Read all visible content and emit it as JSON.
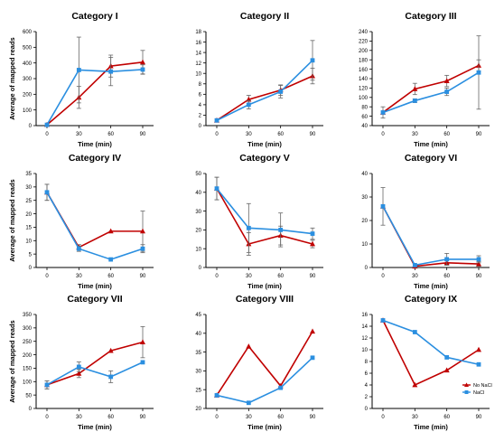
{
  "chart_data": [
    {
      "type": "line",
      "title": "Category I",
      "xlabel": "Time (min)",
      "ylabel": "Average of mapped reads",
      "x": [
        0,
        30,
        60,
        90
      ],
      "ylim": [
        0,
        600
      ],
      "yticks": [
        0,
        100,
        200,
        300,
        400,
        500,
        600
      ],
      "series": [
        {
          "name": "No NaCl",
          "color": "#c00000",
          "marker": "triangle",
          "values": [
            5,
            180,
            380,
            405
          ],
          "err": [
            0,
            70,
            70,
            75
          ]
        },
        {
          "name": "NaCl",
          "color": "#2b8fe0",
          "marker": "square",
          "values": [
            5,
            355,
            345,
            358
          ],
          "err": [
            0,
            210,
            90,
            30
          ]
        }
      ]
    },
    {
      "type": "line",
      "title": "Category II",
      "xlabel": "Time (min)",
      "ylabel": "",
      "x": [
        0,
        30,
        60,
        90
      ],
      "ylim": [
        0,
        18
      ],
      "yticks": [
        0,
        2,
        4,
        6,
        8,
        10,
        12,
        14,
        16,
        18
      ],
      "series": [
        {
          "name": "No NaCl",
          "color": "#c00000",
          "marker": "triangle",
          "values": [
            1,
            5,
            6.8,
            9.5
          ],
          "err": [
            0,
            0.8,
            1.0,
            1.5
          ]
        },
        {
          "name": "NaCl",
          "color": "#2b8fe0",
          "marker": "square",
          "values": [
            1,
            4,
            6.5,
            12.5
          ],
          "err": [
            0,
            0.8,
            1.2,
            3.8
          ]
        }
      ]
    },
    {
      "type": "line",
      "title": "Category III",
      "xlabel": "Time (min)",
      "ylabel": "",
      "x": [
        0,
        30,
        60,
        90
      ],
      "ylim": [
        40,
        240
      ],
      "yticks": [
        40,
        60,
        80,
        100,
        120,
        140,
        160,
        180,
        200,
        220,
        240
      ],
      "series": [
        {
          "name": "No NaCl",
          "color": "#c00000",
          "marker": "triangle",
          "values": [
            68,
            118,
            135,
            168
          ],
          "err": [
            0,
            12,
            12,
            12
          ]
        },
        {
          "name": "NaCl",
          "color": "#2b8fe0",
          "marker": "square",
          "values": [
            68,
            93,
            112,
            153
          ],
          "err": [
            12,
            4,
            8,
            78
          ]
        }
      ]
    },
    {
      "type": "line",
      "title": "Category IV",
      "xlabel": "Time (min)",
      "ylabel": "Average of mapped reads",
      "x": [
        0,
        30,
        60,
        90
      ],
      "ylim": [
        0,
        35
      ],
      "yticks": [
        0,
        5,
        10,
        15,
        20,
        25,
        30,
        35
      ],
      "series": [
        {
          "name": "No NaCl",
          "color": "#c00000",
          "marker": "triangle",
          "values": [
            28,
            7.5,
            13.5,
            13.5
          ],
          "err": [
            3,
            1,
            0,
            7.5
          ]
        },
        {
          "name": "NaCl",
          "color": "#2b8fe0",
          "marker": "square",
          "values": [
            28,
            7,
            3,
            7
          ],
          "err": [
            3,
            1,
            0,
            1.5
          ]
        }
      ]
    },
    {
      "type": "line",
      "title": "Category V",
      "xlabel": "Time (min)",
      "ylabel": "",
      "x": [
        0,
        30,
        60,
        90
      ],
      "ylim": [
        0,
        50
      ],
      "yticks": [
        0,
        10,
        20,
        30,
        40,
        50
      ],
      "series": [
        {
          "name": "No NaCl",
          "color": "#c00000",
          "marker": "triangle",
          "values": [
            42,
            12.5,
            17,
            12.5
          ],
          "err": [
            6,
            6,
            5,
            2
          ]
        },
        {
          "name": "NaCl",
          "color": "#2b8fe0",
          "marker": "square",
          "values": [
            42,
            21,
            20,
            18
          ],
          "err": [
            6,
            13,
            9,
            3
          ]
        }
      ]
    },
    {
      "type": "line",
      "title": "Category VI",
      "xlabel": "Time (min)",
      "ylabel": "",
      "x": [
        0,
        30,
        60,
        90
      ],
      "ylim": [
        0,
        40
      ],
      "yticks": [
        0,
        10,
        20,
        30,
        40
      ],
      "series": [
        {
          "name": "No NaCl",
          "color": "#c00000",
          "marker": "triangle",
          "values": [
            26,
            0.5,
            2,
            1.5
          ],
          "err": [
            0,
            0,
            1,
            1
          ]
        },
        {
          "name": "NaCl",
          "color": "#2b8fe0",
          "marker": "square",
          "values": [
            26,
            1,
            3.5,
            3.5
          ],
          "err": [
            8,
            0.5,
            2.5,
            1.5
          ]
        }
      ]
    },
    {
      "type": "line",
      "title": "Category VII",
      "xlabel": "Time (min)",
      "ylabel": "Average of mapped reads",
      "x": [
        0,
        30,
        60,
        90
      ],
      "ylim": [
        0,
        350
      ],
      "yticks": [
        0,
        50,
        100,
        150,
        200,
        250,
        300,
        350
      ],
      "series": [
        {
          "name": "No NaCl",
          "color": "#c00000",
          "marker": "triangle",
          "values": [
            88,
            130,
            215,
            247
          ],
          "err": [
            15,
            15,
            0,
            58
          ]
        },
        {
          "name": "NaCl",
          "color": "#2b8fe0",
          "marker": "square",
          "values": [
            88,
            155,
            118,
            172
          ],
          "err": [
            15,
            18,
            22,
            0
          ]
        }
      ]
    },
    {
      "type": "line",
      "title": "Category VIII",
      "xlabel": "Time (min)",
      "ylabel": "",
      "x": [
        0,
        30,
        60,
        90
      ],
      "ylim": [
        20,
        45
      ],
      "yticks": [
        20,
        25,
        30,
        35,
        40,
        45
      ],
      "series": [
        {
          "name": "No NaCl",
          "color": "#c00000",
          "marker": "triangle",
          "values": [
            23.5,
            36.5,
            26,
            40.5
          ],
          "err": [
            0,
            0,
            0,
            0
          ]
        },
        {
          "name": "NaCl",
          "color": "#2b8fe0",
          "marker": "square",
          "values": [
            23.5,
            21.5,
            25.5,
            33.5
          ],
          "err": [
            0,
            0,
            0,
            0
          ]
        }
      ]
    },
    {
      "type": "line",
      "title": "Category IX",
      "xlabel": "Time (min)",
      "ylabel": "",
      "x": [
        0,
        30,
        60,
        90
      ],
      "ylim": [
        0,
        16
      ],
      "yticks": [
        0,
        2,
        4,
        6,
        8,
        10,
        12,
        14,
        16
      ],
      "legend": "bottom-right",
      "series": [
        {
          "name": "No NaCl",
          "color": "#c00000",
          "marker": "triangle",
          "values": [
            15,
            4,
            6.5,
            10
          ],
          "err": [
            0,
            0,
            0,
            0
          ]
        },
        {
          "name": "NaCl",
          "color": "#2b8fe0",
          "marker": "square",
          "values": [
            15,
            13,
            8.7,
            7.5
          ],
          "err": [
            0,
            0,
            0,
            0
          ]
        }
      ]
    }
  ]
}
